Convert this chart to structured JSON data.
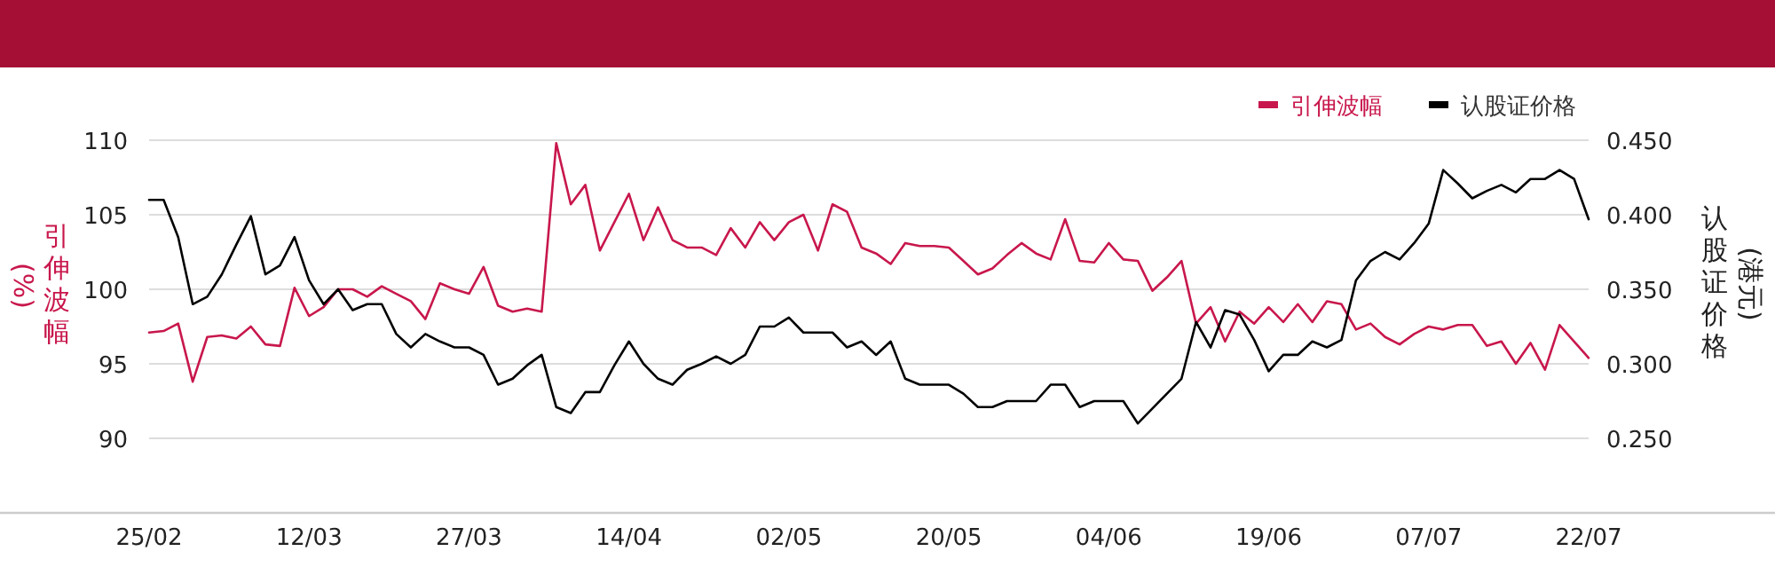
{
  "chart_data": {
    "type": "line",
    "categories": [
      "25/02",
      null,
      null,
      null,
      null,
      null,
      null,
      null,
      null,
      null,
      null,
      "12/03",
      null,
      null,
      null,
      null,
      null,
      null,
      null,
      null,
      null,
      null,
      "27/03",
      null,
      null,
      null,
      null,
      null,
      null,
      null,
      null,
      null,
      null,
      "14/04",
      null,
      null,
      null,
      null,
      null,
      null,
      null,
      null,
      null,
      null,
      "02/05",
      null,
      null,
      null,
      null,
      null,
      null,
      null,
      null,
      null,
      null,
      "20/05",
      null,
      null,
      null,
      null,
      null,
      null,
      null,
      null,
      null,
      null,
      "04/06",
      null,
      null,
      null,
      null,
      null,
      null,
      null,
      null,
      null,
      null,
      "19/06",
      null,
      null,
      null,
      null,
      null,
      null,
      null,
      null,
      null,
      null,
      "07/07",
      null,
      null,
      null,
      null,
      null,
      null,
      null,
      null,
      null,
      null,
      "22/07"
    ],
    "series": [
      {
        "name": "引伸波幅",
        "color": "#c8174c",
        "values": [
          97.1,
          97.2,
          97.7,
          93.8,
          96.8,
          96.9,
          96.7,
          97.5,
          96.3,
          96.2,
          100.1,
          98.2,
          98.8,
          100.0,
          100.0,
          99.5,
          100.2,
          99.7,
          99.2,
          98.0,
          100.4,
          100.0,
          99.7,
          101.5,
          98.9,
          98.5,
          98.7,
          98.5,
          109.8,
          105.7,
          107.0,
          102.6,
          104.5,
          106.4,
          103.3,
          105.5,
          103.3,
          102.8,
          102.8,
          102.3,
          104.1,
          102.8,
          104.5,
          103.3,
          104.5,
          105.0,
          102.6,
          105.7,
          105.2,
          102.8,
          102.4,
          101.7,
          103.1,
          102.9,
          102.9,
          102.8,
          101.9,
          101.0,
          101.4,
          102.3,
          103.1,
          102.4,
          102.0,
          104.7,
          101.9,
          101.8,
          103.1,
          102.0,
          101.9,
          99.9,
          100.8,
          101.9,
          97.7,
          98.8,
          96.5,
          98.5,
          97.7,
          98.8,
          97.8,
          99.0,
          97.8,
          99.2,
          99.0,
          97.3,
          97.7,
          96.8,
          96.3,
          97.0,
          97.5,
          97.3,
          97.6,
          97.6,
          96.2,
          96.5,
          95.0,
          96.4,
          94.6,
          97.6,
          96.5,
          95.4
        ]
      },
      {
        "name": "认股证价格",
        "color": "#000000",
        "axis": "y2",
        "values": [
          0.41,
          0.41,
          0.385,
          0.34,
          0.345,
          0.36,
          0.38,
          0.399,
          0.36,
          0.366,
          0.385,
          0.356,
          0.34,
          0.35,
          0.336,
          0.34,
          0.34,
          0.32,
          0.311,
          0.32,
          0.315,
          0.311,
          0.311,
          0.306,
          0.286,
          0.29,
          0.299,
          0.306,
          0.271,
          0.267,
          0.281,
          0.281,
          0.299,
          0.315,
          0.3,
          0.29,
          0.286,
          0.296,
          0.3,
          0.305,
          0.3,
          0.306,
          0.325,
          0.325,
          0.331,
          0.321,
          0.321,
          0.321,
          0.311,
          0.315,
          0.306,
          0.315,
          0.29,
          0.286,
          0.286,
          0.286,
          0.28,
          0.271,
          0.271,
          0.275,
          0.275,
          0.275,
          0.286,
          0.286,
          0.271,
          0.275,
          0.275,
          0.275,
          0.26,
          0.27,
          0.28,
          0.29,
          0.328,
          0.311,
          0.336,
          0.333,
          0.316,
          0.295,
          0.306,
          0.306,
          0.315,
          0.311,
          0.316,
          0.356,
          0.369,
          0.375,
          0.37,
          0.381,
          0.394,
          0.43,
          0.421,
          0.411,
          0.416,
          0.42,
          0.415,
          0.424,
          0.424,
          0.43,
          0.424,
          0.397
        ]
      }
    ],
    "ylabel": "引伸波幅 (%)",
    "y2label": "认股证价格 (港元)",
    "ylim": [
      85,
      110
    ],
    "yticks": [
      90,
      95,
      100,
      105,
      110
    ],
    "y2lim": [
      0.2,
      0.45
    ],
    "y2ticks": [
      {
        "value": 0.25,
        "label": "0.250"
      },
      {
        "value": 0.3,
        "label": "0.300"
      },
      {
        "value": 0.35,
        "label": "0.350"
      },
      {
        "value": 0.4,
        "label": "0.400"
      },
      {
        "value": 0.45,
        "label": "0.450"
      }
    ],
    "grid": "y",
    "legend": "top right"
  }
}
